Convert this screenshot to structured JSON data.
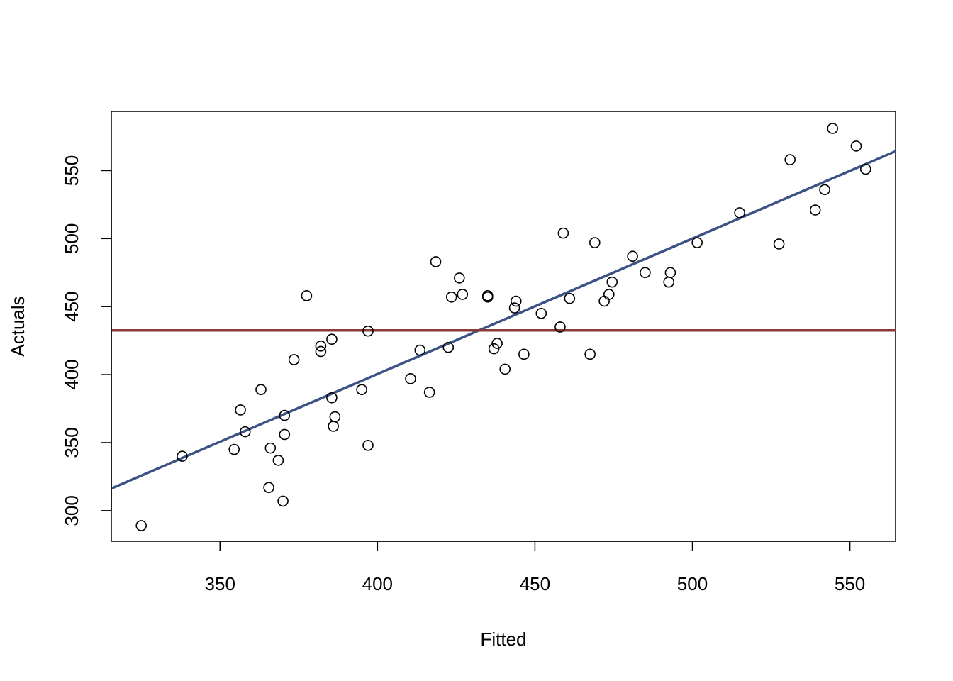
{
  "chart_data": {
    "type": "scatter",
    "xlabel": "Fitted",
    "ylabel": "Actuals",
    "xlim": [
      315.5,
      564.5
    ],
    "ylim": [
      277.5,
      593.5
    ],
    "xticks": [
      350,
      400,
      450,
      500,
      550
    ],
    "yticks": [
      300,
      350,
      400,
      450,
      500,
      550
    ],
    "grid": false,
    "points": [
      [
        325,
        289
      ],
      [
        338,
        340
      ],
      [
        354.5,
        345
      ],
      [
        356.5,
        374
      ],
      [
        358,
        358
      ],
      [
        363,
        389
      ],
      [
        365.5,
        317
      ],
      [
        366,
        346
      ],
      [
        368.5,
        337
      ],
      [
        370,
        307
      ],
      [
        370.5,
        356
      ],
      [
        370.5,
        370
      ],
      [
        373.5,
        411
      ],
      [
        377.5,
        458
      ],
      [
        382,
        417
      ],
      [
        382,
        421
      ],
      [
        385.5,
        426
      ],
      [
        385.5,
        383
      ],
      [
        386,
        362
      ],
      [
        386.5,
        369
      ],
      [
        395,
        389
      ],
      [
        397,
        432
      ],
      [
        397,
        348
      ],
      [
        410.5,
        397
      ],
      [
        413.5,
        418
      ],
      [
        416.5,
        387
      ],
      [
        418.5,
        483
      ],
      [
        422.5,
        420
      ],
      [
        423.5,
        457
      ],
      [
        426,
        471
      ],
      [
        427,
        459
      ],
      [
        435,
        458
      ],
      [
        435,
        457
      ],
      [
        437,
        419
      ],
      [
        438,
        423
      ],
      [
        440.5,
        404
      ],
      [
        443.5,
        449
      ],
      [
        444,
        454
      ],
      [
        446.5,
        415
      ],
      [
        452,
        445
      ],
      [
        458,
        435
      ],
      [
        459,
        504
      ],
      [
        461,
        456
      ],
      [
        467.5,
        415
      ],
      [
        469,
        497
      ],
      [
        472,
        454
      ],
      [
        473.5,
        459
      ],
      [
        474.5,
        468
      ],
      [
        481,
        487
      ],
      [
        485,
        475
      ],
      [
        492.5,
        468
      ],
      [
        493,
        475
      ],
      [
        501.5,
        497
      ],
      [
        515,
        519
      ],
      [
        527.5,
        496
      ],
      [
        531,
        558
      ],
      [
        539,
        521
      ],
      [
        542,
        536
      ],
      [
        544.5,
        581
      ],
      [
        552,
        568
      ],
      [
        555,
        551
      ]
    ],
    "lines": [
      {
        "kind": "regression",
        "color": "#3b5285",
        "x": [
          315.5,
          564.5
        ],
        "y": [
          316.3,
          564.2
        ]
      },
      {
        "kind": "horizontal",
        "color": "#8b3a3a",
        "y": 432.5
      }
    ]
  }
}
